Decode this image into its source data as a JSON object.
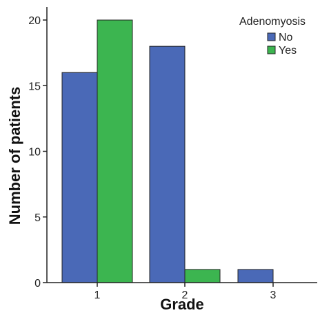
{
  "chart_data": {
    "type": "bar",
    "categories": [
      "1",
      "2",
      "3"
    ],
    "series": [
      {
        "name": "No",
        "values": [
          16,
          18,
          1
        ],
        "color": "#4a69b7"
      },
      {
        "name": "Yes",
        "values": [
          20,
          1,
          0
        ],
        "color": "#3cb550"
      }
    ],
    "xlabel": "Grade",
    "ylabel": "Number of patients",
    "ylim": [
      0,
      21
    ],
    "yticks": [
      0,
      5,
      10,
      15,
      20
    ],
    "legend": {
      "title": "Adenomyosis",
      "placement": "top-right"
    },
    "grid": false,
    "bar_stroke": "#222222"
  }
}
